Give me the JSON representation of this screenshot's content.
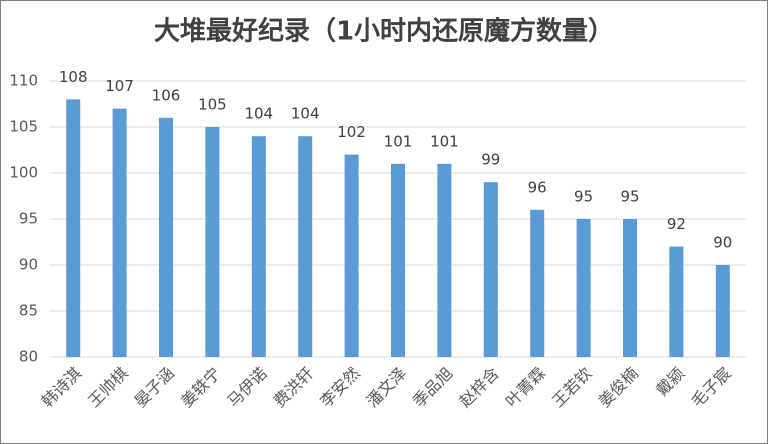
{
  "chart_data": {
    "type": "bar",
    "title": "大堆最好纪录（1小时内还原魔方数量）",
    "categories": [
      "韩诗淇",
      "王帅棋",
      "晏子涵",
      "姜轶宁",
      "马伊诺",
      "费洪轩",
      "李安然",
      "潘文泽",
      "季品旭",
      "赵梓含",
      "叶菁霖",
      "王若钦",
      "姜俊楠",
      "戴颍",
      "毛子宸"
    ],
    "values": [
      108,
      107,
      106,
      105,
      104,
      104,
      102,
      101,
      101,
      99,
      96,
      95,
      95,
      92,
      90
    ],
    "color": "#5b9bd5",
    "ylim": [
      80,
      110
    ],
    "yticks": [
      80,
      85,
      90,
      95,
      100,
      105,
      110
    ],
    "grid": true
  }
}
